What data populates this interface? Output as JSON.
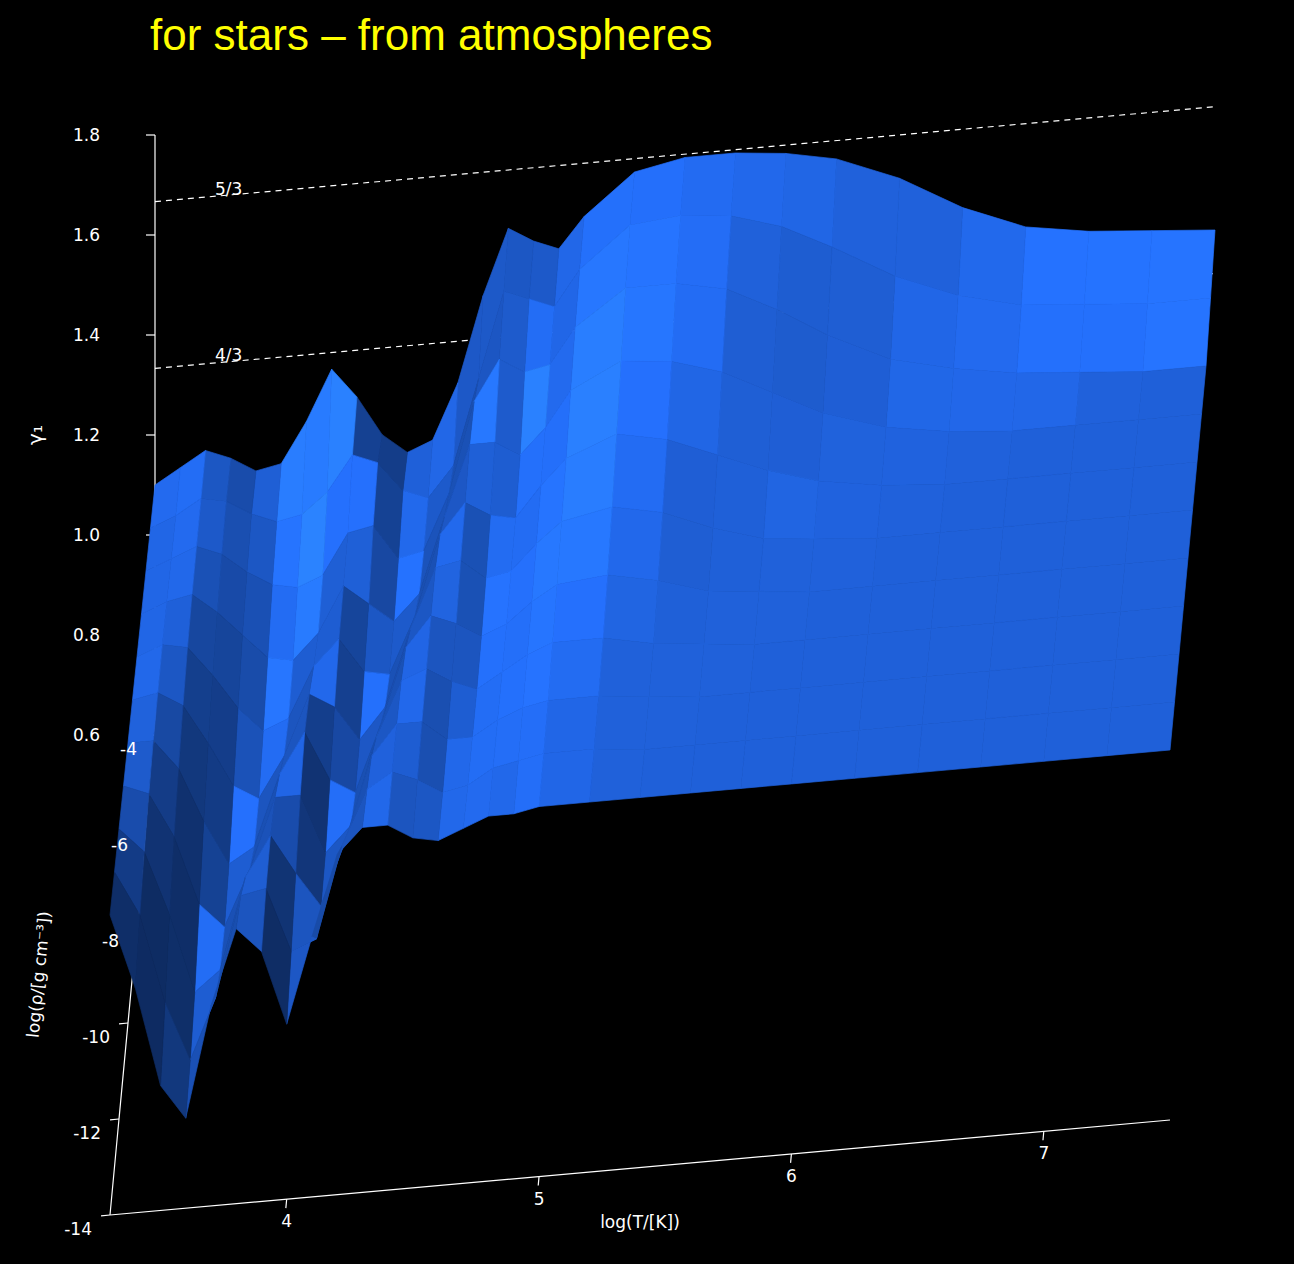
{
  "chart_data": {
    "type": "surface",
    "title": "for stars – from atmospheres",
    "x_label": "log(T/[K])",
    "y_label": "log(ρ/[g cm⁻³])",
    "z_label": "γ₁",
    "color": "#1f5fd6",
    "x": [
      3.3,
      3.4,
      3.5,
      3.6,
      3.7,
      3.8,
      3.9,
      4.0,
      4.1,
      4.2,
      4.3,
      4.4,
      4.5,
      4.6,
      4.7,
      4.8,
      4.9,
      5.0,
      5.2,
      5.4,
      5.6,
      5.8,
      6.0,
      6.25,
      6.5,
      6.75,
      7.0,
      7.25,
      7.5
    ],
    "y": [
      -14,
      -13,
      -12,
      -11,
      -10,
      -9,
      -8,
      -7,
      -6,
      -5,
      -4
    ],
    "z": [
      [
        1.2,
        1.05,
        0.85,
        0.78,
        1.0,
        1.15,
        1.1,
        0.95,
        1.12,
        1.28,
        1.33,
        1.33,
        1.3,
        1.29,
        1.31,
        1.33,
        1.33,
        1.34,
        1.34,
        1.34,
        1.34,
        1.34,
        1.34,
        1.34,
        1.34,
        1.34,
        1.34,
        1.34,
        1.34
      ],
      [
        1.19,
        1.1,
        0.92,
        0.8,
        0.92,
        1.12,
        1.13,
        1.0,
        1.02,
        1.2,
        1.31,
        1.34,
        1.32,
        1.29,
        1.3,
        1.33,
        1.34,
        1.35,
        1.35,
        1.34,
        1.34,
        1.34,
        1.34,
        1.34,
        1.34,
        1.34,
        1.34,
        1.34,
        1.34
      ],
      [
        1.18,
        1.13,
        1.0,
        0.84,
        0.88,
        1.06,
        1.14,
        1.06,
        0.99,
        1.12,
        1.28,
        1.34,
        1.34,
        1.3,
        1.3,
        1.33,
        1.35,
        1.36,
        1.36,
        1.35,
        1.34,
        1.34,
        1.34,
        1.34,
        1.34,
        1.34,
        1.34,
        1.34,
        1.34
      ],
      [
        1.17,
        1.15,
        1.06,
        0.92,
        0.87,
        0.98,
        1.12,
        1.12,
        1.0,
        1.05,
        1.22,
        1.33,
        1.35,
        1.32,
        1.3,
        1.33,
        1.36,
        1.38,
        1.38,
        1.36,
        1.35,
        1.34,
        1.34,
        1.34,
        1.34,
        1.34,
        1.34,
        1.34,
        1.34
      ],
      [
        1.16,
        1.16,
        1.1,
        0.99,
        0.9,
        0.93,
        1.07,
        1.15,
        1.05,
        1.02,
        1.15,
        1.3,
        1.36,
        1.34,
        1.31,
        1.33,
        1.37,
        1.4,
        1.41,
        1.39,
        1.36,
        1.35,
        1.34,
        1.34,
        1.34,
        1.34,
        1.34,
        1.34,
        1.34
      ],
      [
        1.15,
        1.16,
        1.13,
        1.05,
        0.96,
        0.93,
        1.01,
        1.13,
        1.1,
        1.03,
        1.09,
        1.24,
        1.36,
        1.37,
        1.33,
        1.34,
        1.39,
        1.43,
        1.45,
        1.43,
        1.39,
        1.36,
        1.35,
        1.34,
        1.34,
        1.34,
        1.34,
        1.34,
        1.34
      ],
      [
        1.14,
        1.16,
        1.15,
        1.09,
        1.02,
        0.97,
        0.99,
        1.09,
        1.14,
        1.07,
        1.06,
        1.17,
        1.33,
        1.39,
        1.36,
        1.35,
        1.41,
        1.46,
        1.5,
        1.48,
        1.44,
        1.4,
        1.37,
        1.35,
        1.34,
        1.34,
        1.34,
        1.34,
        1.34
      ],
      [
        1.13,
        1.15,
        1.16,
        1.12,
        1.07,
        1.02,
        1.01,
        1.06,
        1.15,
        1.11,
        1.07,
        1.12,
        1.27,
        1.41,
        1.41,
        1.38,
        1.43,
        1.5,
        1.55,
        1.54,
        1.51,
        1.46,
        1.41,
        1.37,
        1.35,
        1.34,
        1.34,
        1.34,
        1.34
      ],
      [
        1.12,
        1.14,
        1.16,
        1.14,
        1.1,
        1.07,
        1.06,
        1.08,
        1.16,
        1.17,
        1.1,
        1.11,
        1.22,
        1.4,
        1.48,
        1.45,
        1.46,
        1.53,
        1.6,
        1.6,
        1.58,
        1.53,
        1.47,
        1.41,
        1.38,
        1.36,
        1.35,
        1.34,
        1.34
      ],
      [
        1.11,
        1.13,
        1.16,
        1.15,
        1.12,
        1.1,
        1.11,
        1.15,
        1.22,
        1.2,
        1.14,
        1.12,
        1.18,
        1.35,
        1.52,
        1.5,
        1.48,
        1.55,
        1.63,
        1.64,
        1.63,
        1.6,
        1.55,
        1.48,
        1.43,
        1.4,
        1.39,
        1.38,
        1.38
      ],
      [
        1.1,
        1.13,
        1.16,
        1.14,
        1.11,
        1.12,
        1.2,
        1.3,
        1.24,
        1.16,
        1.12,
        1.14,
        1.25,
        1.42,
        1.55,
        1.52,
        1.5,
        1.56,
        1.64,
        1.66,
        1.66,
        1.65,
        1.63,
        1.58,
        1.51,
        1.46,
        1.44,
        1.43,
        1.42
      ]
    ],
    "xlim": [
      3.3,
      7.5
    ],
    "ylim": [
      -14,
      -4
    ],
    "zlim": [
      0.6,
      1.8
    ],
    "xticks": [
      4,
      5,
      6,
      7
    ],
    "yticks": [
      -14,
      -12,
      -10,
      -8,
      -6,
      -4
    ],
    "zticks": [
      0.6,
      0.8,
      {
        "value": 1,
        "label": "1.0"
      },
      1.2,
      1.4,
      1.6,
      1.8
    ],
    "reference_lines": [
      {
        "value": 1.6667,
        "label": "5/3"
      },
      {
        "value": 1.3333,
        "label": "4/3"
      }
    ]
  }
}
